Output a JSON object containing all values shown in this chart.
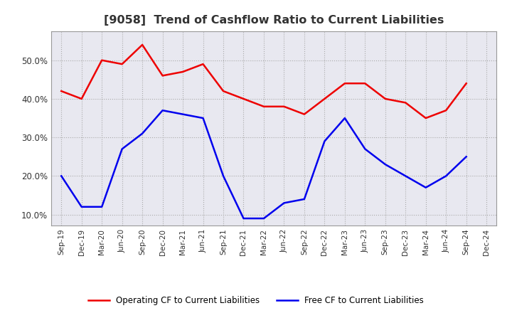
{
  "title": "[9058]  Trend of Cashflow Ratio to Current Liabilities",
  "x_labels": [
    "Sep-19",
    "Dec-19",
    "Mar-20",
    "Jun-20",
    "Sep-20",
    "Dec-20",
    "Mar-21",
    "Jun-21",
    "Sep-21",
    "Dec-21",
    "Mar-22",
    "Jun-22",
    "Sep-22",
    "Dec-22",
    "Mar-23",
    "Jun-23",
    "Sep-23",
    "Dec-23",
    "Mar-24",
    "Jun-24",
    "Sep-24",
    "Dec-24"
  ],
  "operating_cf": [
    0.42,
    0.4,
    0.5,
    0.49,
    0.54,
    0.46,
    0.47,
    0.49,
    0.42,
    0.4,
    0.38,
    0.38,
    0.36,
    0.4,
    0.44,
    0.44,
    0.4,
    0.39,
    0.35,
    0.37,
    0.44,
    null
  ],
  "free_cf": [
    0.2,
    0.12,
    0.12,
    0.27,
    0.31,
    0.37,
    0.36,
    0.35,
    0.2,
    0.09,
    0.09,
    0.13,
    0.14,
    0.29,
    0.35,
    0.27,
    0.23,
    0.2,
    0.17,
    0.2,
    0.25,
    null
  ],
  "operating_color": "#ee0000",
  "free_color": "#0000ee",
  "ylim_min": 0.072,
  "ylim_max": 0.575,
  "yticks": [
    0.1,
    0.2,
    0.3,
    0.4,
    0.5
  ],
  "legend_operating": "Operating CF to Current Liabilities",
  "legend_free": "Free CF to Current Liabilities",
  "background_color": "#ffffff",
  "plot_bg_color": "#e8e8f0",
  "grid_color": "#aaaaaa",
  "title_color": "#333333",
  "title_fontsize": 11.5,
  "linewidth": 1.8
}
